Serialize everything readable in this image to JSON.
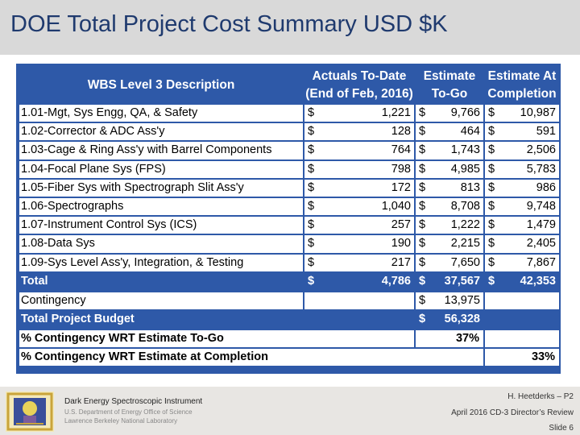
{
  "title": "DOE Total Project Cost Summary USD $K",
  "table": {
    "header": {
      "description": "WBS Level 3 Description",
      "actuals_line1": "Actuals To-Date",
      "actuals_line2": "(End of Feb, 2016)",
      "etg_line1": "Estimate",
      "etg_line2": "To-Go",
      "eac_line1": "Estimate At",
      "eac_line2": "Completion"
    },
    "currency_symbol": "$",
    "rows": [
      {
        "description": "1.01-Mgt, Sys Engg, QA, & Safety",
        "actuals": "1,221",
        "etg": "9,766",
        "eac": "10,987"
      },
      {
        "description": "1.02-Corrector & ADC Ass'y",
        "actuals": "128",
        "etg": "464",
        "eac": "591"
      },
      {
        "description": "1.03-Cage & Ring Ass'y with Barrel Components",
        "actuals": "764",
        "etg": "1,743",
        "eac": "2,506"
      },
      {
        "description": "1.04-Focal Plane Sys (FPS)",
        "actuals": "798",
        "etg": "4,985",
        "eac": "5,783"
      },
      {
        "description": "1.05-Fiber Sys with Spectrograph Slit Ass'y",
        "actuals": "172",
        "etg": "813",
        "eac": "986"
      },
      {
        "description": "1.06-Spectrographs",
        "actuals": "1,040",
        "etg": "8,708",
        "eac": "9,748"
      },
      {
        "description": "1.07-Instrument Control Sys (ICS)",
        "actuals": "257",
        "etg": "1,222",
        "eac": "1,479"
      },
      {
        "description": "1.08-Data Sys",
        "actuals": "190",
        "etg": "2,215",
        "eac": "2,405"
      },
      {
        "description": "1.09-Sys Level Ass'y, Integration, & Testing",
        "actuals": "217",
        "etg": "7,650",
        "eac": "7,867"
      }
    ],
    "total": {
      "description": "Total",
      "actuals": "4,786",
      "etg": "37,567",
      "eac": "42,353"
    },
    "contingency": {
      "description": "Contingency",
      "etg": "13,975"
    },
    "total_budget": {
      "description": "Total Project Budget",
      "etg": "56,328"
    },
    "pct_etg": {
      "description": "% Contingency WRT Estimate To-Go",
      "value": "37%"
    },
    "pct_eac": {
      "description": "% Contingency WRT Estimate at Completion",
      "value": "33%"
    }
  },
  "footer": {
    "instrument": "Dark Energy Spectroscopic Instrument",
    "department": "U.S. Department of Energy Office of Science",
    "lab": "Lawrence Berkeley National Laboratory",
    "presenter": "H. Heetderks – P2",
    "review": "April 2016  CD-3 Director’s Review",
    "slide": "Slide 6"
  },
  "colors": {
    "table_blue": "#2e59a8",
    "title_color": "#1f3a6e",
    "title_bar": "#d9d9d9"
  }
}
